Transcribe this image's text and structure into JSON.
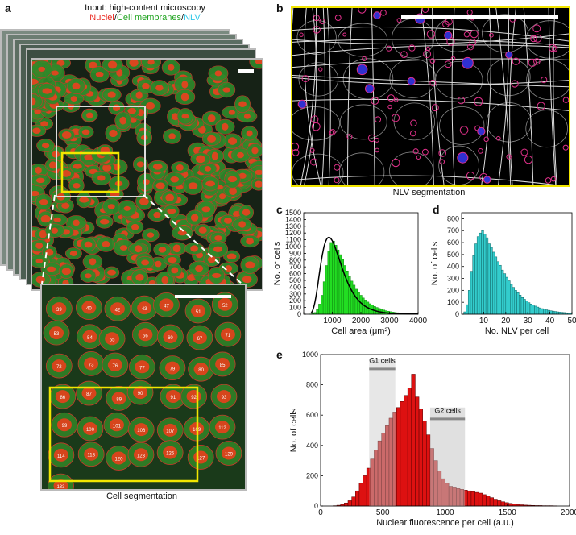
{
  "panels": {
    "a": {
      "letter": "a",
      "input_prefix": "Input: high-content microscopy",
      "channels": [
        {
          "label": "Nuclei",
          "color": "#e8221a"
        },
        {
          "label": "/",
          "color": "#111111"
        },
        {
          "label": "Cell membranes",
          "color": "#1fa31f"
        },
        {
          "label": "/",
          "color": "#111111"
        },
        {
          "label": "NLV",
          "color": "#30c8e8"
        }
      ],
      "caption": "Cell segmentation",
      "cell_ids": [
        "39",
        "40",
        "42",
        "43",
        "47",
        "51",
        "52",
        "53",
        "54",
        "55",
        "56",
        "60",
        "67",
        "71",
        "72",
        "73",
        "76",
        "77",
        "79",
        "80",
        "85",
        "86",
        "87",
        "89",
        "90",
        "91",
        "92",
        "93",
        "99",
        "100",
        "101",
        "106",
        "107",
        "109",
        "112",
        "114",
        "118",
        "120",
        "123",
        "126",
        "127",
        "129",
        "133"
      ]
    },
    "b": {
      "letter": "b",
      "caption": "NLV segmentation"
    },
    "c": {
      "letter": "c"
    },
    "d": {
      "letter": "d"
    },
    "e": {
      "letter": "e",
      "annot_g1": "G1 cells",
      "annot_g2": "G2 cells"
    }
  },
  "colors": {
    "green": "#22dd22",
    "cyan": "#33cccc",
    "red": "#dd1111",
    "darkred": "#d44040",
    "yellow": "#f2e600"
  },
  "chart_data": [
    {
      "id": "c",
      "type": "bar",
      "xlabel": "Cell area (μm²)",
      "ylabel": "No. of cells",
      "xlim": [
        0,
        4000
      ],
      "ylim": [
        0,
        1500
      ],
      "xticks": [
        0,
        1000,
        2000,
        3000,
        4000
      ],
      "yticks": [
        0,
        100,
        200,
        300,
        400,
        500,
        600,
        700,
        800,
        900,
        1000,
        1100,
        1200,
        1300,
        1400,
        1500
      ],
      "ytick_labels": [
        "0",
        "100",
        "200",
        "300",
        "400",
        "500",
        "600",
        "700",
        "800",
        "900",
        "1000",
        "1100",
        "1200",
        "1300",
        "1400",
        "1500"
      ],
      "xtick_labels": [
        "1000",
        "2000",
        "3000",
        "4000"
      ],
      "bin_start": 200,
      "bin_width": 80,
      "values": [
        2,
        8,
        25,
        70,
        150,
        280,
        480,
        720,
        930,
        1060,
        1080,
        1020,
        950,
        880,
        810,
        720,
        640,
        560,
        490,
        430,
        370,
        320,
        280,
        240,
        210,
        180,
        155,
        135,
        115,
        100,
        85,
        72,
        62,
        52,
        44,
        37,
        31,
        26,
        22,
        18,
        15,
        12,
        10,
        8,
        7,
        6,
        5,
        4
      ],
      "fit": "lognormal"
    },
    {
      "id": "d",
      "type": "bar",
      "xlabel": "No. NLV per cell",
      "ylabel": "No. of cells",
      "xlim": [
        0,
        50
      ],
      "ylim": [
        0,
        850
      ],
      "xticks": [
        10,
        20,
        30,
        40,
        50
      ],
      "yticks": [
        0,
        100,
        200,
        300,
        400,
        500,
        600,
        700,
        800
      ],
      "xtick_labels": [
        "10",
        "20",
        "30",
        "40",
        "50"
      ],
      "ytick_labels": [
        "0",
        "100",
        "200",
        "300",
        "400",
        "500",
        "600",
        "700",
        "800"
      ],
      "bin_start": 1,
      "bin_width": 1,
      "values": [
        20,
        80,
        200,
        360,
        490,
        590,
        650,
        680,
        700,
        670,
        640,
        590,
        560,
        520,
        480,
        440,
        410,
        370,
        340,
        310,
        280,
        250,
        225,
        200,
        180,
        160,
        140,
        125,
        110,
        97,
        86,
        76,
        68,
        60,
        53,
        47,
        42,
        37,
        33,
        29,
        26,
        23,
        20,
        18,
        16,
        14,
        12,
        10,
        9
      ]
    },
    {
      "id": "e",
      "type": "bar",
      "xlabel": "Nuclear fluorescence per cell (a.u.)",
      "ylabel": "No. of cells",
      "xlim": [
        0,
        2000
      ],
      "ylim": [
        0,
        1000
      ],
      "xticks": [
        0,
        500,
        1000,
        1500,
        2000
      ],
      "yticks": [
        0,
        200,
        400,
        600,
        800,
        1000
      ],
      "xtick_labels": [
        "0",
        "500",
        "1000",
        "1500",
        "2000"
      ],
      "ytick_labels": [
        "0",
        "200",
        "400",
        "600",
        "800",
        "1000"
      ],
      "bin_start": 100,
      "bin_width": 30,
      "values": [
        2,
        5,
        10,
        20,
        35,
        60,
        100,
        150,
        200,
        250,
        310,
        370,
        430,
        480,
        530,
        580,
        620,
        650,
        690,
        730,
        780,
        870,
        720,
        640,
        560,
        470,
        380,
        300,
        230,
        180,
        150,
        130,
        120,
        115,
        110,
        105,
        100,
        95,
        90,
        85,
        75,
        65,
        55,
        45,
        35,
        28,
        22,
        17,
        13,
        10,
        8,
        6,
        5,
        4,
        3,
        3,
        2,
        2,
        2,
        1
      ],
      "g1_range": [
        390,
        600
      ],
      "g2_range": [
        880,
        1160
      ]
    }
  ],
  "labels_text": {
    "c_ytop": "1500"
  }
}
